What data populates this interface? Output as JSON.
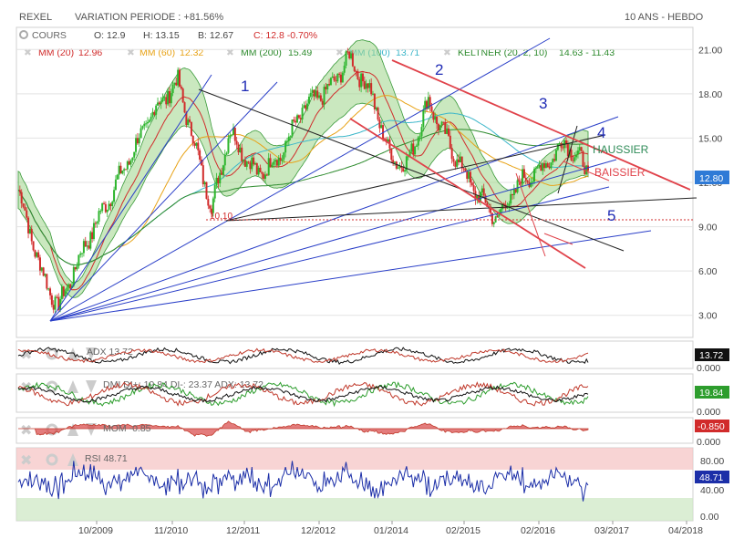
{
  "header": {
    "name": "REXEL",
    "variation": "VARIATION PERIODE : +81.56%",
    "range": "10 ANS - HEBDO"
  },
  "legend": {
    "cours": "COURS",
    "open": "O: 12.9",
    "high": "H: 13.15",
    "low": "B: 12.67",
    "close": "C: 12.8 -0.70%",
    "mm20_label": "MM (20)",
    "mm20_val": "12.96",
    "mm60_label": "MM (60)",
    "mm60_val": "12.32",
    "mm200_label": "MM (200)",
    "mm200_val": "15.49",
    "mm100_label": "MM (100)",
    "mm100_val": "13.71",
    "keltner_label": "KELTNER (20, 2, 10)",
    "keltner_val": "14.63 - 11.43"
  },
  "colors": {
    "up": "#2db52d",
    "down": "#d12b2b",
    "mm20": "#d12b2b",
    "mm60": "#e8a317",
    "mm200": "#2e8b2e",
    "mm100": "#3bb6c9",
    "keltner": "#3a9a3a",
    "keltner_fill": "#9fd68a",
    "blue_line": "#2a3fc8",
    "red_line": "#e0424a",
    "black_line": "#222222",
    "ann_blue": "#1f2bb5"
  },
  "annotations": {
    "n1": "1",
    "n2": "2",
    "n3": "3",
    "n4": "4",
    "n5": "5",
    "haussier": "HAUSSIER",
    "baissier": "BAISSIER",
    "level": "10.10"
  },
  "price_axis": {
    "ticks": [
      "21.00",
      "18.00",
      "15.00",
      "12.00",
      "9.00",
      "6.00",
      "3.00"
    ],
    "tick_values": [
      21,
      18,
      15,
      12,
      9,
      6,
      3
    ],
    "last": "12.80"
  },
  "x_axis": {
    "labels": [
      "10/2009",
      "11/2010",
      "12/2011",
      "12/2012",
      "01/2014",
      "02/2015",
      "02/2016",
      "03/2017",
      "04/2018"
    ]
  },
  "indicators": {
    "adx": {
      "label": "ADX",
      "value": "13.72",
      "axis_bottom": "0.000",
      "tag": "13.72"
    },
    "dmi": {
      "label": "DMI DI+",
      "text": "DMI DI+: 19.84 DI-: 23.37 ADX: 13.72",
      "axis_bottom": "0.000",
      "tag": "19.84"
    },
    "mom": {
      "label": "MOM",
      "value": "-0.85",
      "axis_bottom": "0.000",
      "tag": "-0.850"
    },
    "rsi": {
      "label": "RSI",
      "value": "48.71",
      "ticks": [
        "80.00",
        "40.00",
        "0.00"
      ],
      "tag": "48.71"
    }
  },
  "chart_data": {
    "type": "candlestick",
    "title": "REXEL",
    "xlabel": "",
    "ylabel": "",
    "ylim": [
      1.5,
      22.5
    ],
    "x_labels": [
      "10/2009",
      "11/2010",
      "12/2011",
      "12/2012",
      "01/2014",
      "02/2015",
      "02/2016",
      "03/2017",
      "04/2018"
    ],
    "series": [
      {
        "name": "COURS",
        "approx_path": [
          [
            0,
            11.5
          ],
          [
            0.04,
            6
          ],
          [
            0.07,
            3.5
          ],
          [
            0.12,
            8
          ],
          [
            0.18,
            12.5
          ],
          [
            0.24,
            17
          ],
          [
            0.28,
            18.8
          ],
          [
            0.31,
            14.5
          ],
          [
            0.34,
            10.2
          ],
          [
            0.37,
            15.5
          ],
          [
            0.42,
            12.5
          ],
          [
            0.46,
            13.8
          ],
          [
            0.5,
            17
          ],
          [
            0.55,
            18.5
          ],
          [
            0.58,
            20.5
          ],
          [
            0.62,
            18
          ],
          [
            0.65,
            14
          ],
          [
            0.68,
            13
          ],
          [
            0.72,
            17.5
          ],
          [
            0.75,
            15
          ],
          [
            0.8,
            11.5
          ],
          [
            0.84,
            9.5
          ],
          [
            0.88,
            12
          ],
          [
            0.92,
            13
          ],
          [
            0.96,
            14.8
          ],
          [
            1.0,
            12.8
          ]
        ]
      }
    ],
    "last": {
      "open": 12.9,
      "high": 13.15,
      "low": 12.67,
      "close": 12.8,
      "change_pct": -0.7
    },
    "rsi_last": 48.71,
    "adx_last": 13.72,
    "mom_last": -0.85
  }
}
